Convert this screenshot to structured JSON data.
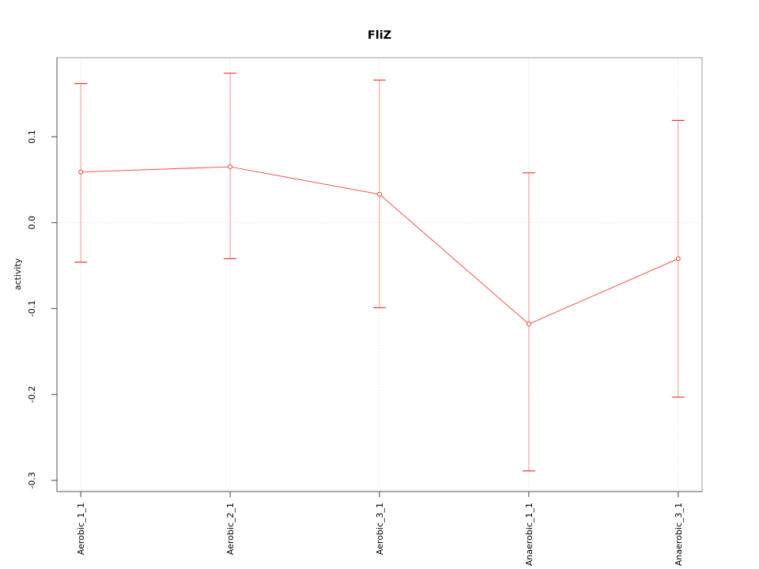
{
  "figure": {
    "background": "#ffffff"
  },
  "chart_data": {
    "type": "line",
    "subtype": "points-with-error-bars",
    "title": "FliZ",
    "xlabel": "",
    "ylabel": "activity",
    "categories": [
      "Aerobic_1_1",
      "Aerobic_2_1",
      "Aerobic_3_1",
      "Anaerobic_1_1",
      "Anaerobic_3_1"
    ],
    "series": [
      {
        "name": "activity",
        "values": [
          0.059,
          0.065,
          0.033,
          -0.118,
          -0.042
        ],
        "error_low": [
          -0.046,
          -0.042,
          -0.099,
          -0.289,
          -0.203
        ],
        "error_high": [
          0.162,
          0.174,
          0.166,
          0.058,
          0.119
        ]
      }
    ],
    "yticks": [
      0.1,
      0.0,
      -0.1,
      -0.2,
      -0.3
    ],
    "ytick_labels": [
      "0.1",
      "0.0",
      "-0.1",
      "-0.2",
      "-0.3"
    ],
    "ylim": [
      -0.313,
      0.192
    ],
    "xlim": [
      0.84,
      5.16
    ],
    "grid": {
      "vertical_at_categories": true,
      "horizontal_at_zero": true,
      "line_style": "dotted"
    },
    "legend": "none",
    "marker": "open-circle",
    "colors": {
      "series": "#f03c32",
      "grid": "#d9d9d9",
      "box": "#9b9b9b",
      "axis": "#555555",
      "tick": "#414141",
      "text": "#000000"
    }
  }
}
